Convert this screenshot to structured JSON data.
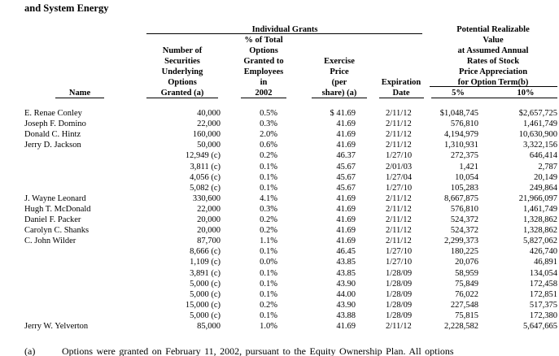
{
  "heading": "and System Energy",
  "group_headers": {
    "individual": "Individual Grants",
    "potential": [
      "Potential Realizable",
      "Value",
      "at Assumed Annual",
      "Rates of Stock",
      "Price Appreciation",
      "for Option Term(b)"
    ]
  },
  "columns": {
    "name": [
      "Name"
    ],
    "number": [
      "Number of",
      "Securities",
      "Underlying",
      "Options",
      "Granted (a)"
    ],
    "pct": [
      "% of Total",
      "Options",
      "Granted to",
      "Employees",
      "in",
      "2002"
    ],
    "price": [
      "Exercise",
      "Price",
      "(per",
      "share) (a)"
    ],
    "date": [
      "Expiration",
      "Date"
    ],
    "v5": [
      "5%"
    ],
    "v10": [
      "10%"
    ]
  },
  "table": {
    "rows": [
      [
        "E. Renae Conley",
        "40,000",
        "0.5%",
        "$ 41.69",
        "2/11/12",
        "$1,048,745",
        "$2,657,725"
      ],
      [
        "Joseph F. Domino",
        "22,000",
        "0.3%",
        "41.69",
        "2/11/12",
        "576,810",
        "1,461,749"
      ],
      [
        "Donald C. Hintz",
        "160,000",
        "2.0%",
        "41.69",
        "2/11/12",
        "4,194,979",
        "10,630,900"
      ],
      [
        "Jerry D. Jackson",
        "50,000",
        "0.6%",
        "41.69",
        "2/11/12",
        "1,310,931",
        "3,322,156"
      ],
      [
        null,
        "12,949 (c)",
        "0.2%",
        "46.37",
        "1/27/10",
        "272,375",
        "646,414"
      ],
      [
        null,
        "3,811 (c)",
        "0.1%",
        "45.67",
        "2/01/03",
        "1,421",
        "2,787"
      ],
      [
        null,
        "4,056 (c)",
        "0.1%",
        "45.67",
        "1/27/04",
        "10,054",
        "20,149"
      ],
      [
        null,
        "5,082 (c)",
        "0.1%",
        "45.67",
        "1/27/10",
        "105,283",
        "249,864"
      ],
      [
        "J. Wayne Leonard",
        "330,600",
        "4.1%",
        "41.69",
        "2/11/12",
        "8,667,875",
        "21,966,097"
      ],
      [
        "Hugh T. McDonald",
        "22,000",
        "0.3%",
        "41.69",
        "2/11/12",
        "576,810",
        "1,461,749"
      ],
      [
        "Daniel F. Packer",
        "20,000",
        "0.2%",
        "41.69",
        "2/11/12",
        "524,372",
        "1,328,862"
      ],
      [
        "Carolyn C. Shanks",
        "20,000",
        "0.2%",
        "41.69",
        "2/11/12",
        "524,372",
        "1,328,862"
      ],
      [
        "C. John Wilder",
        "87,700",
        "1.1%",
        "41.69",
        "2/11/12",
        "2,299,373",
        "5,827,062"
      ],
      [
        null,
        "8,666 (c)",
        "0.1%",
        "46.45",
        "1/27/10",
        "180,225",
        "426,740"
      ],
      [
        null,
        "1,109 (c)",
        "0.0%",
        "43.85",
        "1/27/10",
        "20,076",
        "46,891"
      ],
      [
        null,
        "3,891 (c)",
        "0.1%",
        "43.85",
        "1/28/09",
        "58,959",
        "134,054"
      ],
      [
        null,
        "5,000 (c)",
        "0.1%",
        "43.90",
        "1/28/09",
        "75,849",
        "172,458"
      ],
      [
        null,
        "5,000 (c)",
        "0.1%",
        "44.00",
        "1/28/09",
        "76,022",
        "172,851"
      ],
      [
        null,
        "15,000 (c)",
        "0.2%",
        "43.90",
        "1/28/09",
        "227,548",
        "517,375"
      ],
      [
        null,
        "5,000 (c)",
        "0.1%",
        "43.88",
        "1/28/09",
        "75,815",
        "172,380"
      ],
      [
        "Jerry W. Yelverton",
        "85,000",
        "1.0%",
        "41.69",
        "2/11/12",
        "2,228,582",
        "5,647,665"
      ]
    ]
  },
  "footnote": {
    "label": "(a)",
    "text": "Options were granted on February 11, 2002, pursuant to the Equity Ownership Plan. All options"
  }
}
